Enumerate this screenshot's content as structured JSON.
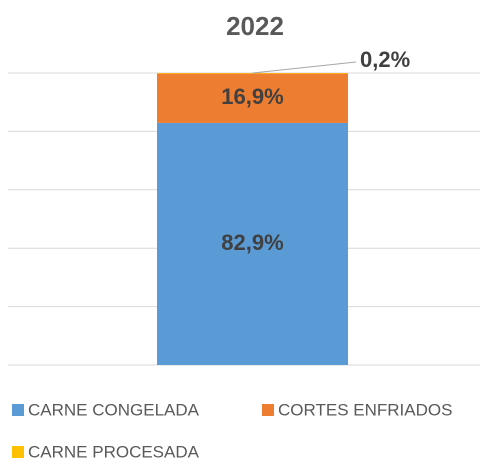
{
  "chart_data": {
    "type": "stacked_bar",
    "title": "2022",
    "categories": [
      null
    ],
    "series": [
      {
        "name": "CARNE CONGELADA",
        "color": "#5b9bd5",
        "values": [
          82.9
        ],
        "value_labels": [
          "82,9%"
        ]
      },
      {
        "name": "CORTES ENFRIADOS",
        "color": "#ed7d31",
        "values": [
          16.9
        ],
        "value_labels": [
          "16,9%"
        ]
      },
      {
        "name": "CARNE PROCESADA",
        "color": "#ffc000",
        "values": [
          0.2
        ],
        "value_labels": [
          "0,2%"
        ]
      }
    ],
    "ylim": [
      0,
      100
    ],
    "yticks": [
      0,
      20,
      40,
      60,
      80,
      100
    ],
    "grid": true,
    "legend": "bottom"
  }
}
